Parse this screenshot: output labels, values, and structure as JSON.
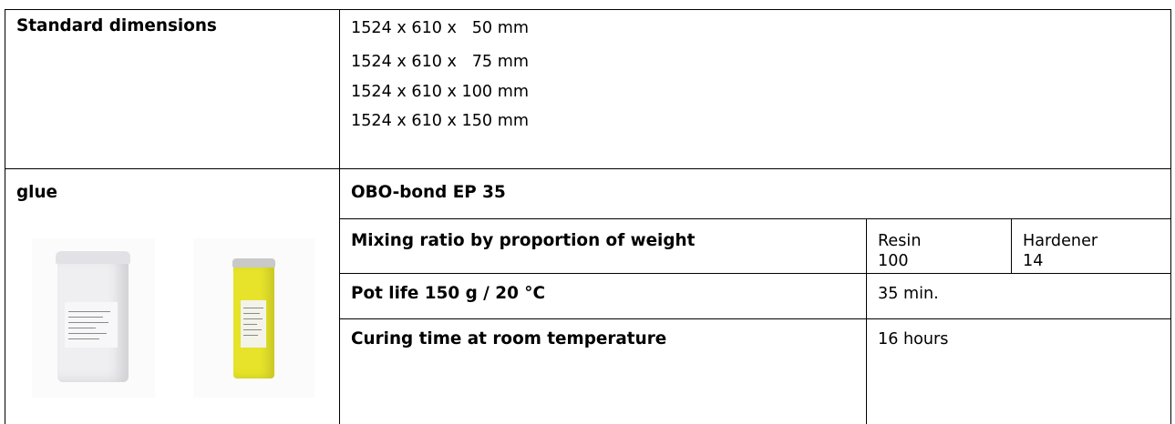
{
  "standard_dimensions": {
    "label": "Standard dimensions",
    "values": [
      "1524 x 610 x   50 mm",
      "1524 x 610 x   75 mm",
      "1524 x 610 x 100 mm",
      "1524 x 610 x 150 mm"
    ]
  },
  "glue": {
    "label": "glue",
    "product": "OBO-bond EP 35",
    "images": {
      "resin_can": {
        "body_color": "#efeff2",
        "lid_color": "#e2e2e6"
      },
      "hardener_can": {
        "body_color": "#e6e32a",
        "lid_color": "#c9c9c9"
      }
    },
    "properties": [
      {
        "label": "Mixing ratio by proportion of weight",
        "resin_name": "Resin",
        "resin_value": "100",
        "hardener_name": "Hardener",
        "hardener_value": "14"
      },
      {
        "label": "Pot life 150 g / 20 °C",
        "value": "35 min."
      },
      {
        "label": "Curing time at room temperature",
        "value": "16 hours"
      }
    ]
  }
}
